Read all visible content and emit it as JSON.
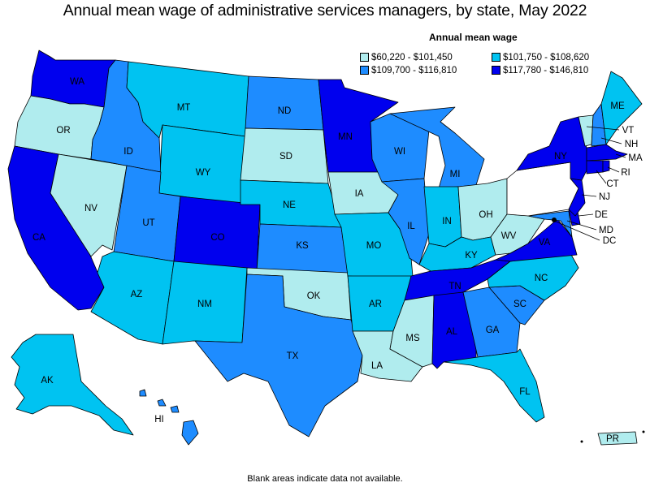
{
  "title": "Annual mean wage of administrative services managers, by state, May 2022",
  "legend": {
    "title": "Annual mean wage",
    "ranges": [
      {
        "label": "$60,220 - $101,450",
        "color": "#b0ecee"
      },
      {
        "label": "$101,750 - $108,620",
        "color": "#00c3f1"
      },
      {
        "label": "$109,700 - $116,810",
        "color": "#1e8cff"
      },
      {
        "label": "$117,780 - $146,810",
        "color": "#0000ee"
      }
    ]
  },
  "footnote": "Blank areas indicate data not available.",
  "states": {
    "WA": 3,
    "OR": 0,
    "CA": 3,
    "NV": 0,
    "ID": 2,
    "MT": 1,
    "WY": 1,
    "UT": 2,
    "CO": 3,
    "AZ": 1,
    "NM": 1,
    "ND": 2,
    "SD": 0,
    "NE": 1,
    "KS": 2,
    "OK": 0,
    "TX": 2,
    "MN": 3,
    "IA": 0,
    "MO": 1,
    "AR": 1,
    "LA": 0,
    "WI": 2,
    "IL": 2,
    "MI": 2,
    "IN": 1,
    "OH": 0,
    "KY": 1,
    "TN": 3,
    "MS": 0,
    "AL": 3,
    "GA": 2,
    "FL": 1,
    "SC": 2,
    "NC": 1,
    "VA": 3,
    "WV": 0,
    "PA": -1,
    "NY": 3,
    "VT": 0,
    "NH": 2,
    "ME": 1,
    "MA": 3,
    "RI": 3,
    "CT": 3,
    "NJ": 3,
    "DE": 3,
    "MD": 2,
    "DC": 3,
    "AK": 1,
    "HI": 2,
    "PR": 0
  }
}
